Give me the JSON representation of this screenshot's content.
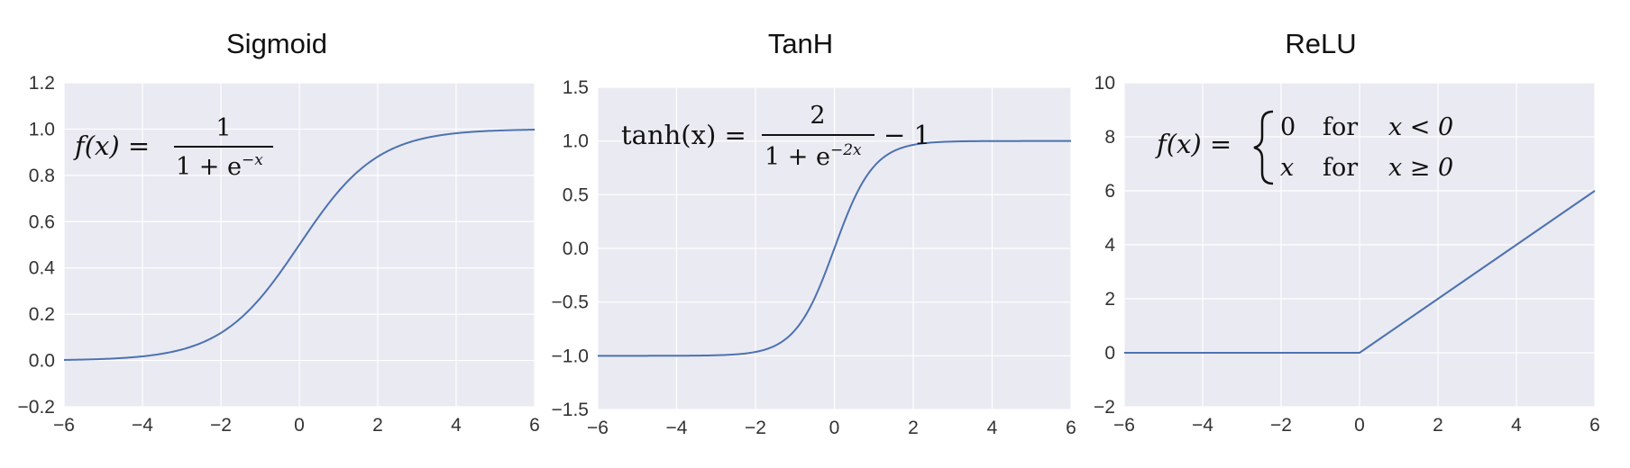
{
  "colors": {
    "plot_background": "#EAEAF2",
    "grid": "#FFFFFF",
    "line": "#4C72B0",
    "text": "#111111"
  },
  "chart_data": [
    {
      "type": "line",
      "title": "Sigmoid",
      "function": "sigmoid",
      "x": [
        -6,
        -5,
        -4,
        -3,
        -2,
        -1,
        0,
        1,
        2,
        3,
        4,
        5,
        6
      ],
      "y": [
        0.0025,
        0.0067,
        0.018,
        0.047,
        0.119,
        0.269,
        0.5,
        0.731,
        0.881,
        0.953,
        0.982,
        0.993,
        0.9975
      ],
      "xlim": [
        -6,
        6
      ],
      "ylim": [
        -0.2,
        1.2
      ],
      "xticks": [
        -6,
        -4,
        -2,
        0,
        2,
        4,
        6
      ],
      "yticks": [
        -0.2,
        0.0,
        0.2,
        0.4,
        0.6,
        0.8,
        1.0,
        1.2
      ],
      "xtick_labels": [
        "−6",
        "−4",
        "−2",
        "0",
        "2",
        "4",
        "6"
      ],
      "ytick_labels": [
        "−0.2",
        "0.0",
        "0.2",
        "0.4",
        "0.6",
        "0.8",
        "1.0",
        "1.2"
      ],
      "grid": true,
      "annotation": {
        "lhs": "f(x) =",
        "numerator": "1",
        "denominator_base": "1 + e",
        "denominator_exponent": "−x"
      }
    },
    {
      "type": "line",
      "title": "TanH",
      "function": "tanh",
      "x": [
        -6,
        -5,
        -4,
        -3,
        -2,
        -1,
        0,
        1,
        2,
        3,
        4,
        5,
        6
      ],
      "y": [
        -1.0,
        -0.9999,
        -0.9993,
        -0.995,
        -0.964,
        -0.762,
        0.0,
        0.762,
        0.964,
        0.995,
        0.9993,
        0.9999,
        1.0
      ],
      "xlim": [
        -6,
        6
      ],
      "ylim": [
        -1.5,
        1.5
      ],
      "xticks": [
        -6,
        -4,
        -2,
        0,
        2,
        4,
        6
      ],
      "yticks": [
        -1.5,
        -1.0,
        -0.5,
        0.0,
        0.5,
        1.0,
        1.5
      ],
      "xtick_labels": [
        "−6",
        "−4",
        "−2",
        "0",
        "2",
        "4",
        "6"
      ],
      "ytick_labels": [
        "−1.5",
        "−1.0",
        "−0.5",
        "0.0",
        "0.5",
        "1.0",
        "1.5"
      ],
      "grid": true,
      "annotation": {
        "lhs": "tanh(x) =",
        "numerator": "2",
        "denominator_base": "1 + e",
        "denominator_exponent": "−2x",
        "suffix": "− 1"
      }
    },
    {
      "type": "line",
      "title": "ReLU",
      "function": "relu",
      "x": [
        -6,
        -5,
        -4,
        -3,
        -2,
        -1,
        0,
        1,
        2,
        3,
        4,
        5,
        6
      ],
      "y": [
        0,
        0,
        0,
        0,
        0,
        0,
        0,
        1,
        2,
        3,
        4,
        5,
        6
      ],
      "xlim": [
        -6,
        6
      ],
      "ylim": [
        -2,
        10
      ],
      "xticks": [
        -6,
        -4,
        -2,
        0,
        2,
        4,
        6
      ],
      "yticks": [
        -2,
        0,
        2,
        4,
        6,
        8,
        10
      ],
      "xtick_labels": [
        "−6",
        "−4",
        "−2",
        "0",
        "2",
        "4",
        "6"
      ],
      "ytick_labels": [
        "−2",
        "0",
        "2",
        "4",
        "6",
        "8",
        "10"
      ],
      "grid": true,
      "annotation": {
        "lhs": "f(x) =",
        "case1_value": "0",
        "case1_word": "for",
        "case1_condition": "x < 0",
        "case2_value": "x",
        "case2_word": "for",
        "case2_condition": "x ≥ 0"
      }
    }
  ]
}
